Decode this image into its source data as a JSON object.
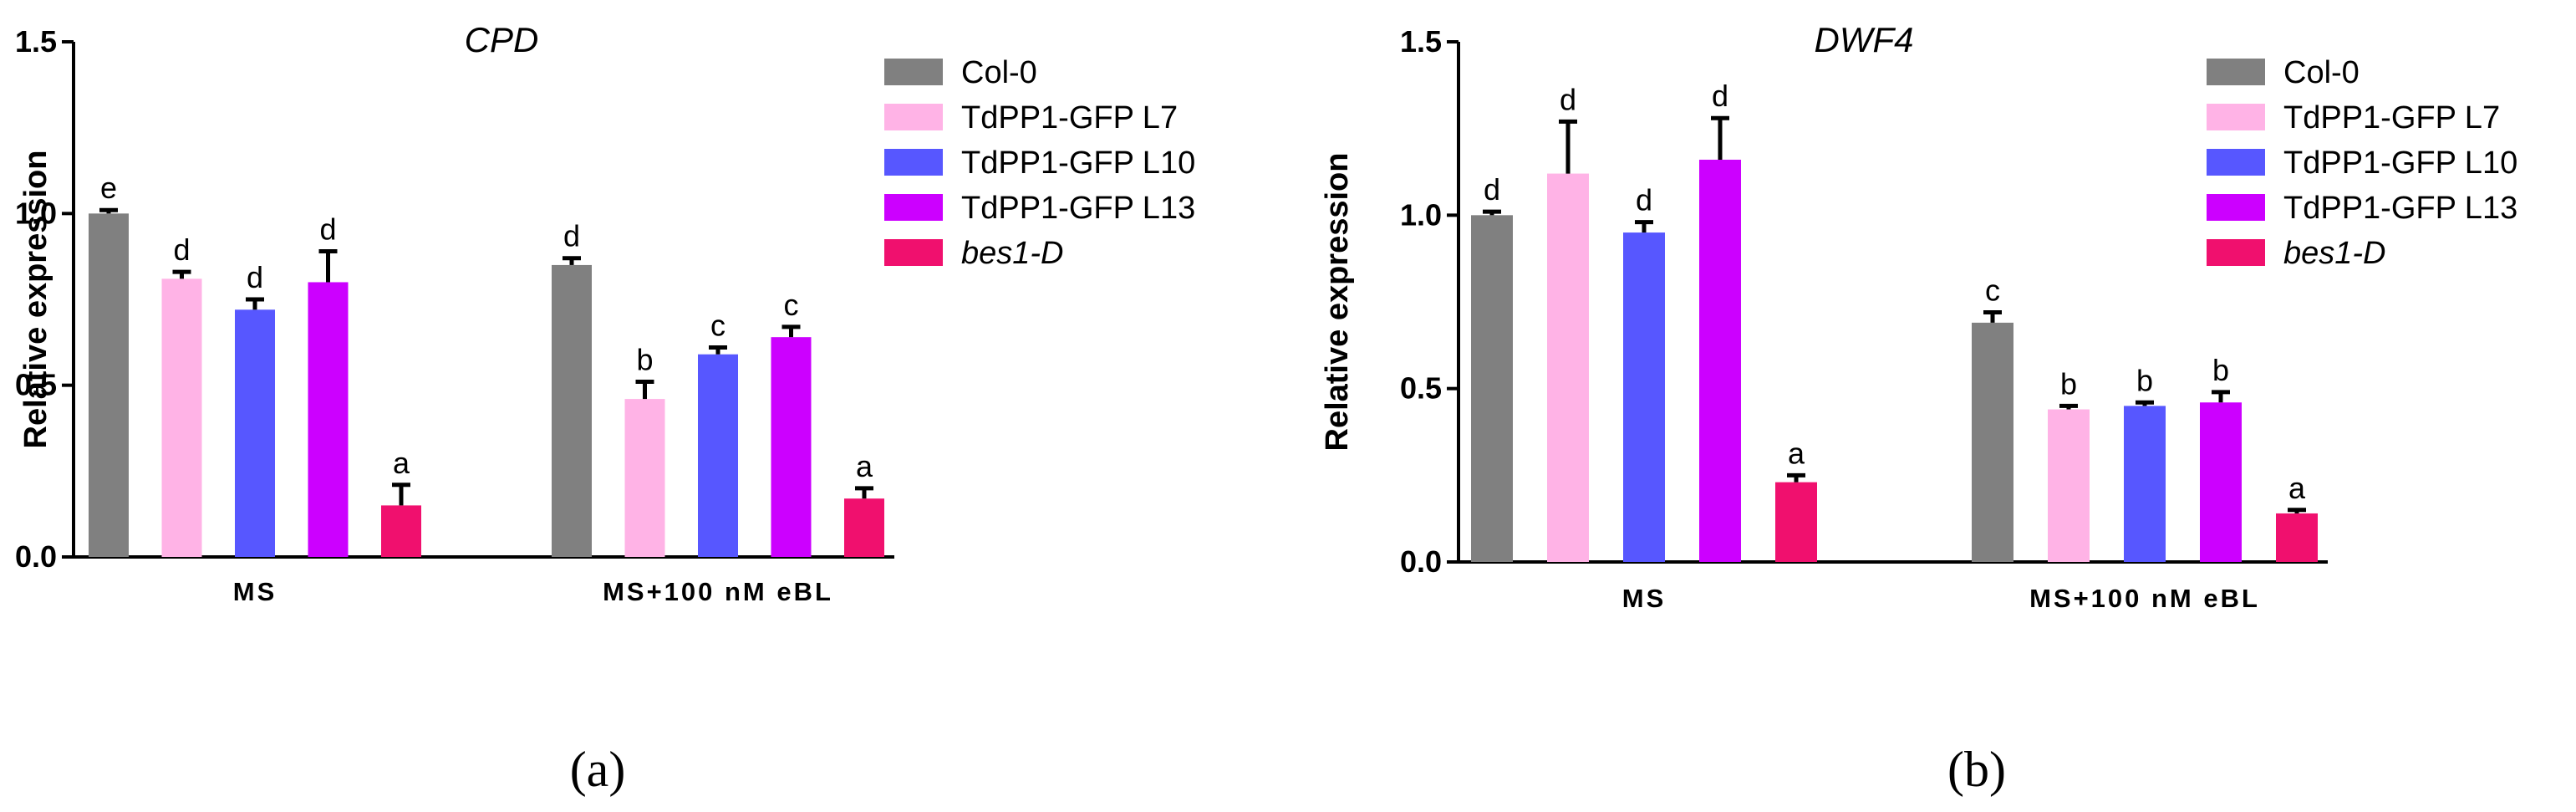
{
  "chart_data": [
    {
      "type": "bar",
      "title": "CPD",
      "ylabel": "Relative expression",
      "xlabel": "",
      "ylim": [
        0,
        1.5
      ],
      "yticks": [
        "0.0",
        "0.5",
        "1.0",
        "1.5"
      ],
      "categories": [
        "MS",
        "MS+100 nM eBL"
      ],
      "panel_label": "(a)",
      "legend_position": "right",
      "series": [
        {
          "name": "Col-0",
          "color": "#808080",
          "italic": false,
          "values": [
            1.0,
            0.85
          ],
          "errors": [
            0.01,
            0.02
          ],
          "sig": [
            "e",
            "d"
          ]
        },
        {
          "name": "TdPP1-GFP L7",
          "color": "#FFB3E6",
          "italic": false,
          "values": [
            0.81,
            0.46
          ],
          "errors": [
            0.02,
            0.05
          ],
          "sig": [
            "d",
            "b"
          ]
        },
        {
          "name": "TdPP1-GFP L10",
          "color": "#5757FF",
          "italic": false,
          "values": [
            0.72,
            0.59
          ],
          "errors": [
            0.03,
            0.02
          ],
          "sig": [
            "d",
            "c"
          ]
        },
        {
          "name": "TdPP1-GFP L13",
          "color": "#CC00FF",
          "italic": false,
          "values": [
            0.8,
            0.64
          ],
          "errors": [
            0.09,
            0.03
          ],
          "sig": [
            "d",
            "c"
          ]
        },
        {
          "name": "bes1-D",
          "color": "#F0106E",
          "italic": true,
          "values": [
            0.15,
            0.17
          ],
          "errors": [
            0.06,
            0.03
          ],
          "sig": [
            "a",
            "a"
          ]
        }
      ]
    },
    {
      "type": "bar",
      "title": "DWF4",
      "ylabel": "Relative expression",
      "xlabel": "",
      "ylim": [
        0,
        1.5
      ],
      "yticks": [
        "0.0",
        "0.5",
        "1.0",
        "1.5"
      ],
      "categories": [
        "MS",
        "MS+100 nM eBL"
      ],
      "panel_label": "(b)",
      "legend_position": "right",
      "series": [
        {
          "name": "Col-0",
          "color": "#808080",
          "italic": false,
          "values": [
            1.0,
            0.69
          ],
          "errors": [
            0.01,
            0.03
          ],
          "sig": [
            "d",
            "c"
          ]
        },
        {
          "name": "TdPP1-GFP L7",
          "color": "#FFB3E6",
          "italic": false,
          "values": [
            1.12,
            0.44
          ],
          "errors": [
            0.15,
            0.01
          ],
          "sig": [
            "d",
            "b"
          ]
        },
        {
          "name": "TdPP1-GFP L10",
          "color": "#5757FF",
          "italic": false,
          "values": [
            0.95,
            0.45
          ],
          "errors": [
            0.03,
            0.01
          ],
          "sig": [
            "d",
            "b"
          ]
        },
        {
          "name": "TdPP1-GFP L13",
          "color": "#CC00FF",
          "italic": false,
          "values": [
            1.16,
            0.46
          ],
          "errors": [
            0.12,
            0.03
          ],
          "sig": [
            "d",
            "b"
          ]
        },
        {
          "name": "bes1-D",
          "color": "#F0106E",
          "italic": true,
          "values": [
            0.23,
            0.14
          ],
          "errors": [
            0.02,
            0.01
          ],
          "sig": [
            "a",
            "a"
          ]
        }
      ]
    }
  ]
}
